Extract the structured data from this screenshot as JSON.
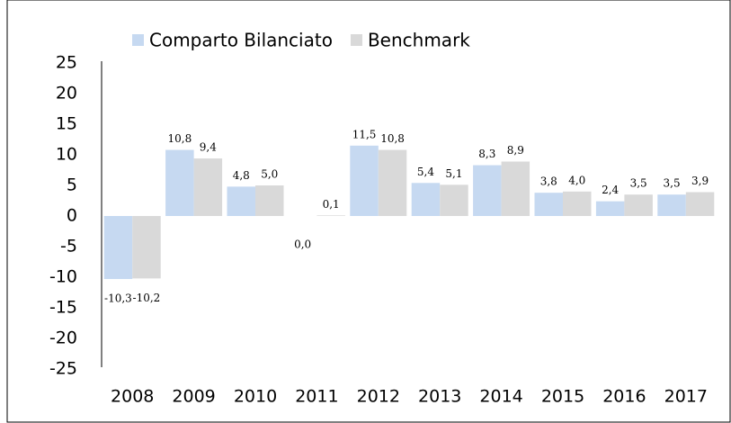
{
  "chart_data": {
    "type": "bar",
    "categories": [
      "2008",
      "2009",
      "2010",
      "2011",
      "2012",
      "2013",
      "2014",
      "2015",
      "2016",
      "2017"
    ],
    "series": [
      {
        "name": "Comparto Bilanciato",
        "color": "#c6d9f1",
        "values": [
          -10.3,
          10.8,
          4.8,
          0.0,
          11.5,
          5.4,
          8.3,
          3.8,
          2.4,
          3.5
        ],
        "value_labels": [
          "-10,3",
          "10,8",
          "4,8",
          "0,0",
          "11,5",
          "5,4",
          "8,3",
          "3,8",
          "2,4",
          "3,5"
        ]
      },
      {
        "name": "Benchmark",
        "color": "#d9d9d9",
        "values": [
          -10.2,
          9.4,
          5.0,
          0.1,
          10.8,
          5.1,
          8.9,
          4.0,
          3.5,
          3.9
        ],
        "value_labels": [
          "-10,2",
          "9,4",
          "5,0",
          "0,1",
          "10,8",
          "5,1",
          "8,9",
          "4,0",
          "3,5",
          "3,9"
        ]
      }
    ],
    "ylim": [
      -25,
      25
    ],
    "yticks": [
      -25,
      -20,
      -15,
      -10,
      -5,
      0,
      5,
      10,
      15,
      20,
      25
    ],
    "grid": false,
    "legend": "top"
  }
}
